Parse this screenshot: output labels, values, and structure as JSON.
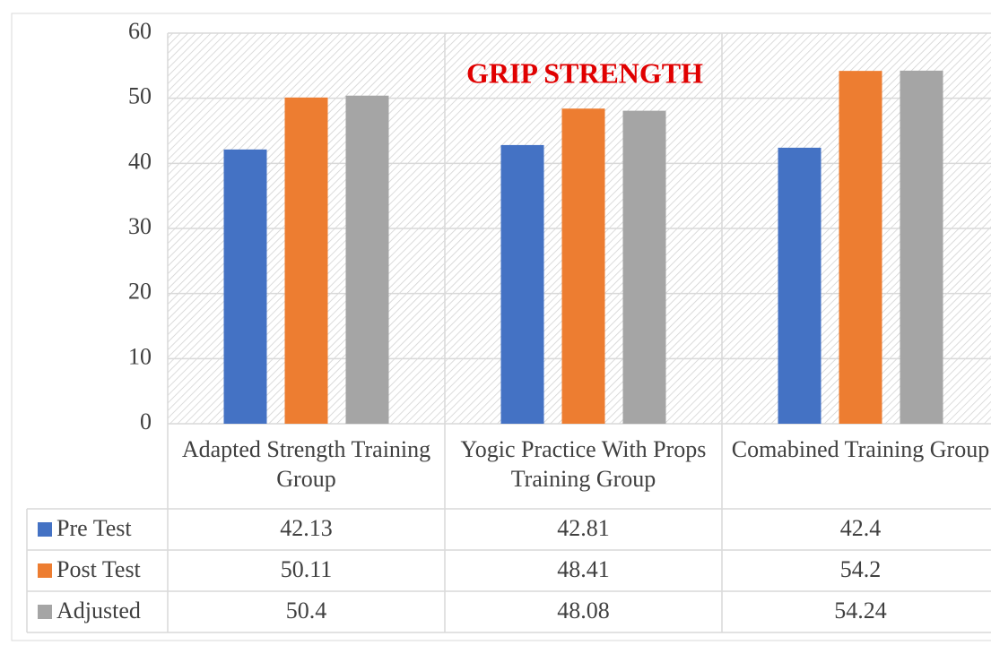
{
  "chart_data": {
    "type": "bar",
    "title": "GRIP STRENGTH",
    "categories": [
      "Adapted Strength Training Group",
      "Yogic Practice With Props Training Group",
      "Comabined Training Group"
    ],
    "series": [
      {
        "name": "Pre Test",
        "color": "#4472c4",
        "values": [
          42.13,
          42.81,
          42.4
        ]
      },
      {
        "name": "Post Test",
        "color": "#ed7d31",
        "values": [
          50.11,
          48.41,
          54.2
        ]
      },
      {
        "name": "Adjusted",
        "color": "#a5a5a5",
        "values": [
          50.4,
          48.08,
          54.24
        ]
      }
    ],
    "ylim": [
      0,
      60
    ],
    "yticks": [
      0,
      10,
      20,
      30,
      40,
      50,
      60
    ],
    "grid": true,
    "data_table": true
  }
}
